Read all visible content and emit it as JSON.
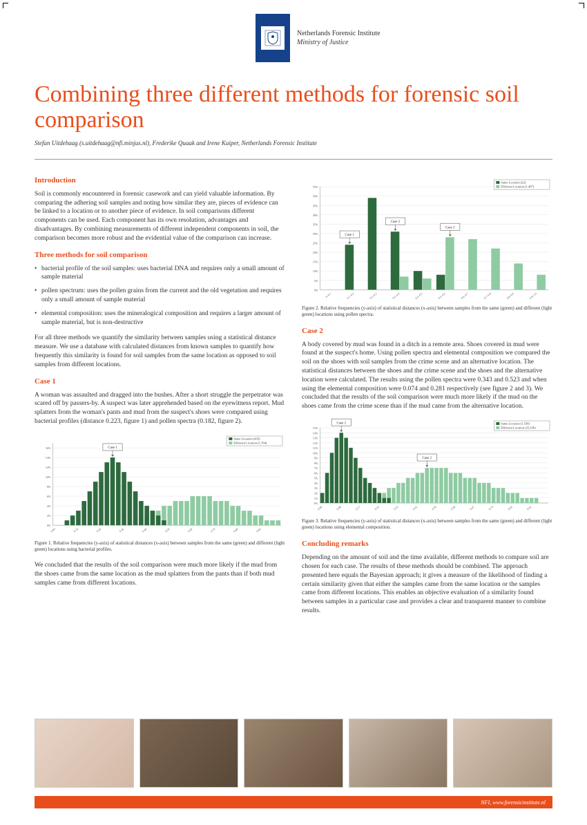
{
  "org": {
    "line1": "Netherlands Forensic Institute",
    "line2": "Ministry of Justice"
  },
  "title": "Combining three different methods for forensic soil comparison",
  "authors": "Stefan Uitdehaag (s.uitdehaag@nfi.minjus.nl), Frederike Quaak and Irene Kuiper, Netherlands Forensic Institute",
  "sections": {
    "intro_heading": "Introduction",
    "intro_body": "Soil is commonly encountered in forensic casework and can yield valuable information. By comparing the adhering soil samples and noting how similar they are, pieces of evidence can be linked to a location or to another piece of evidence.\nIn soil comparisons different components can be used. Each component has its own resolution, advantages and disadvantages. By combining measurements of different independent components in soil, the comparison becomes more robust and the evidential value of the comparison can increase.",
    "methods_heading": "Three methods for soil comparison",
    "methods_bullets": [
      "bacterial profile of the soil samples: uses bacterial DNA and requires only a small amount of sample material",
      "pollen spectrum: uses the pollen grains from the current and the old vegetation and requires only a small amount of sample material",
      "elemental composition: uses the mineralogical composition and requires a larger amount of sample material, but is non-destructive"
    ],
    "methods_body": "For all three methods we quantify the similarity between samples using a statistical distance measure. We use a database with calculated distances from known samples to quantify how frequently this similarity is found for soil samples from the same location as opposed to soil samples from different locations.",
    "case1_heading": "Case 1",
    "case1_body": "A woman was assaulted and dragged into the bushes. After a short struggle the perpetrator was scared off by passers-by. A suspect was later apprehended based on the eyewitness report. Mud splatters from the woman's pants and mud from the suspect's shoes were compared using bacterial profiles (distance 0.223, figure 1) and pollen spectra (0.182, figure 2).",
    "case1_conclusion": "We concluded that the results of the soil comparison were much more likely if the mud from the shoes came from the same location as the mud splatters from the pants than if both mud samples came from different locations.",
    "case2_heading": "Case 2",
    "case2_body": "A body covered by mud was found in a ditch in a remote area. Shoes covered in mud were found at the suspect's home. Using pollen spectra and elemental composition we compared the soil on the shoes with soil samples from the crime scene and an alternative location. The statistical distances between the shoes and the crime scene and the shoes and the alternative location were calculated. The results using the pollen spectra were 0.343 and 0.523 and when using the elemental composition were 0.074 and 0.281 respectively (see figure 2 and 3).\nWe concluded that the results of the soil comparison were much more likely if the mud on the shoes came from the crime scene than if the mud came from the alternative location.",
    "concl_heading": "Concluding remarks",
    "concl_body": "Depending on the amount of soil and the time available, different methods to compare soil are chosen for each case. The results of these methods should be combined.\nThe approach presented here equals the Bayesian approach; it gives a measure of the likelihood of finding a certain similarity given that either the samples came from the same location or the samples came from different locations. This enables an objective evaluation of a similarity found between samples in a particular case and provides a clear and transparent manner to combine results."
  },
  "figures": {
    "fig1_caption": "Figure 1. Relative frequencies (y-axis) of statistical distances (x-axis) between samples from the same (green) and different (light green) locations using bacterial profiles.",
    "fig2_caption": "Figure 2. Relative frequencies (y-axis) of statistical distances (x-axis) between samples from the same (green) and different (light green) locations using pollen spectra.",
    "fig3_caption": "Figure 3. Relative frequencies (y-axis) of statistical distances (x-axis) between samples from the same (green) and different (light green) locations using elemental composition."
  },
  "charts": {
    "colors": {
      "same": "#2d6a3e",
      "diff": "#8ecba2",
      "grid": "#e0e0e0",
      "axis": "#888888",
      "bg": "#ffffff"
    },
    "fig2": {
      "type": "bar",
      "ylim": [
        0,
        55
      ],
      "ytick_step": 5,
      "categories": [
        "0–0.1",
        "0.1–0.2",
        "0.2–0.3",
        "0.3–0.4",
        "0.4–0.5",
        "0.5–0.6",
        "0.6–0.7",
        "0.7–0.8",
        "0.8–0.9",
        "0.9–1.0"
      ],
      "same_values": [
        0,
        24,
        49,
        31,
        10,
        8,
        0,
        0,
        0,
        0
      ],
      "diff_values": [
        0,
        0,
        0,
        7,
        6,
        28,
        27,
        22,
        14,
        8
      ],
      "legend": [
        "Same Location (22)",
        "Different Location (1,497)"
      ],
      "callouts": [
        {
          "label": "Case 1",
          "x_index": 1,
          "series": "same"
        },
        {
          "label": "Case 2",
          "x_index": 3,
          "series": "same"
        },
        {
          "label": "Case 2",
          "x_index": 5,
          "series": "diff"
        }
      ]
    },
    "fig1": {
      "type": "bar",
      "ylim": [
        0,
        17
      ],
      "ytick_step": 2,
      "n_bins": 40,
      "same_values": [
        0,
        0,
        1,
        2,
        3,
        5,
        7,
        9,
        11,
        13,
        14,
        13,
        11,
        9,
        7,
        5,
        4,
        3,
        2,
        1,
        0,
        0,
        0,
        0,
        0,
        0,
        0,
        0,
        0,
        0,
        0,
        0,
        0,
        0,
        0,
        0,
        0,
        0,
        0,
        0
      ],
      "diff_values": [
        0,
        0,
        0,
        0,
        0,
        0,
        0,
        0,
        0,
        0,
        0,
        0,
        0,
        1,
        1,
        2,
        2,
        3,
        3,
        4,
        4,
        5,
        5,
        5,
        6,
        6,
        6,
        6,
        5,
        5,
        5,
        4,
        4,
        3,
        3,
        2,
        2,
        1,
        1,
        1
      ],
      "legend": [
        "Same Location (435)",
        "Different Location (1,764)"
      ],
      "callouts": [
        {
          "label": "Case 1",
          "x_index": 10,
          "series": "same"
        }
      ]
    },
    "fig3": {
      "type": "bar",
      "ylim": [
        0,
        15
      ],
      "ytick_step": 1,
      "n_bins": 48,
      "same_values": [
        2,
        6,
        10,
        13,
        14,
        13,
        11,
        9,
        7,
        5,
        4,
        3,
        2,
        1,
        1,
        0,
        0,
        0,
        0,
        0,
        0,
        0,
        0,
        0,
        0,
        0,
        0,
        0,
        0,
        0,
        0,
        0,
        0,
        0,
        0,
        0,
        0,
        0,
        0,
        0,
        0,
        0,
        0,
        0,
        0,
        0,
        0,
        0
      ],
      "diff_values": [
        0,
        0,
        0,
        0,
        0,
        0,
        0,
        0,
        1,
        1,
        1,
        2,
        2,
        2,
        3,
        3,
        4,
        4,
        5,
        5,
        6,
        6,
        7,
        7,
        7,
        7,
        7,
        6,
        6,
        6,
        5,
        5,
        5,
        4,
        4,
        4,
        3,
        3,
        3,
        2,
        2,
        2,
        1,
        1,
        1,
        1,
        0,
        0
      ],
      "legend": [
        "Same Location (1,539)",
        "Different Location (25,336)"
      ],
      "callouts": [
        {
          "label": "Case 2",
          "x_index": 4,
          "series": "same"
        },
        {
          "label": "Case 2",
          "x_index": 22,
          "series": "diff"
        }
      ]
    }
  },
  "footer": "NFI, www.forensicinstitute.nl"
}
